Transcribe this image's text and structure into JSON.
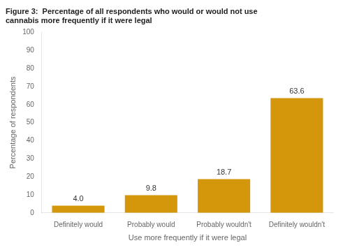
{
  "chart_data": {
    "type": "bar",
    "title": [
      "Figure 3:  Percentage of all respondents who would or would not use",
      "cannabis more frequently if it were legal"
    ],
    "xlabel": "Use more frequently if it were legal",
    "ylabel": "Percentage of respondents",
    "categories": [
      "Definitely would",
      "Probably would",
      "Probably wouldn't",
      "Definitely wouldn't"
    ],
    "values": [
      4.0,
      9.8,
      18.7,
      63.6
    ],
    "value_labels": [
      "4.0",
      "9.8",
      "18.7",
      "63.6"
    ],
    "data_labels": true,
    "color": "#D4960A",
    "ylim": [
      0,
      100
    ],
    "yticks": [
      0,
      10,
      20,
      30,
      40,
      50,
      60,
      70,
      80,
      90,
      100
    ],
    "grid": false
  }
}
